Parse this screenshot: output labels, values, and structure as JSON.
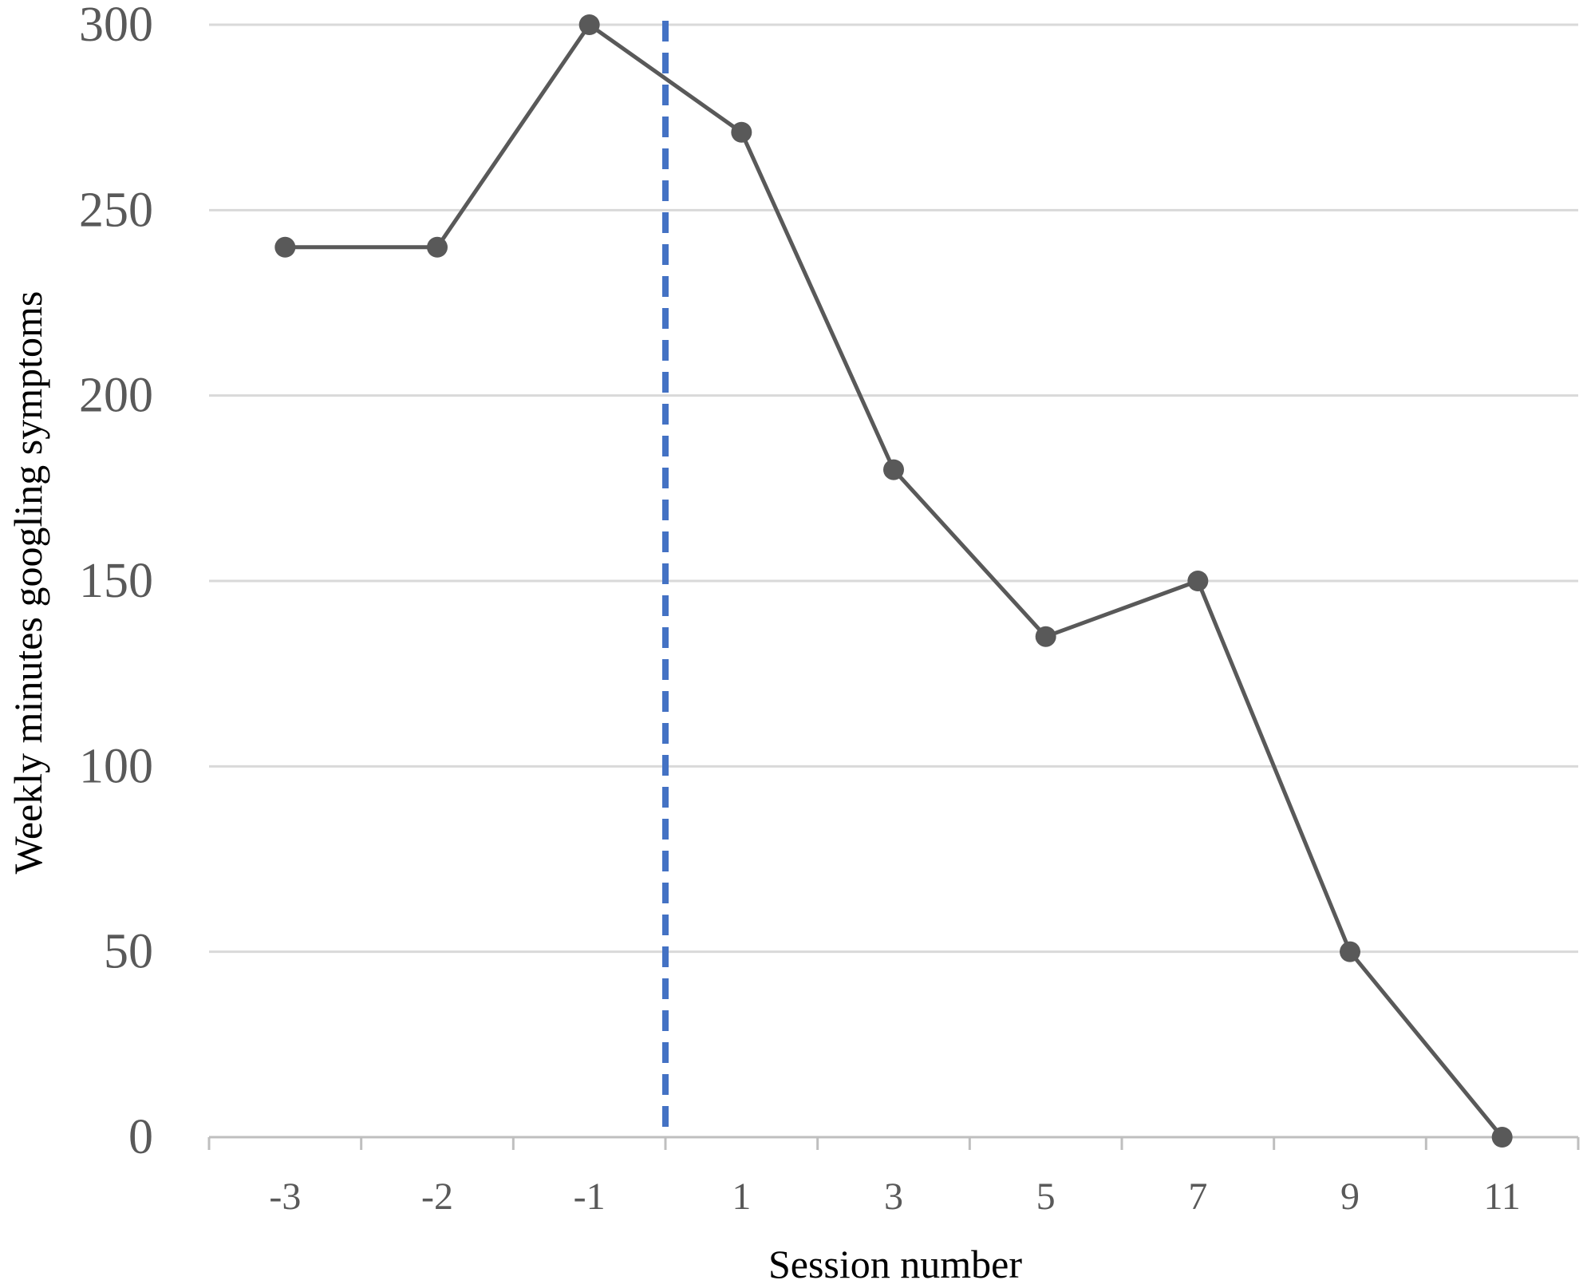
{
  "chart_data": {
    "type": "line",
    "categories": [
      "-3",
      "-2",
      "-1",
      "1",
      "3",
      "5",
      "7",
      "9",
      "11"
    ],
    "series": [
      {
        "values": [
          240,
          240,
          300,
          271,
          180,
          135,
          150,
          50,
          0
        ]
      }
    ],
    "xlabel": "Session number",
    "ylabel": "Weekly minutes googling symptoms",
    "ylim": [
      0,
      300
    ],
    "yticks": [
      0,
      50,
      100,
      150,
      200,
      250,
      300
    ],
    "grid": true,
    "legend": "none",
    "reference_line": {
      "style": "dashed",
      "between": [
        "-1",
        "1"
      ]
    },
    "colors": {
      "series": "#595959",
      "reference_line": "#4472c4",
      "gridline": "#d9d9d9",
      "axis": "#bfbfbf",
      "tick_text": "#595959"
    }
  }
}
